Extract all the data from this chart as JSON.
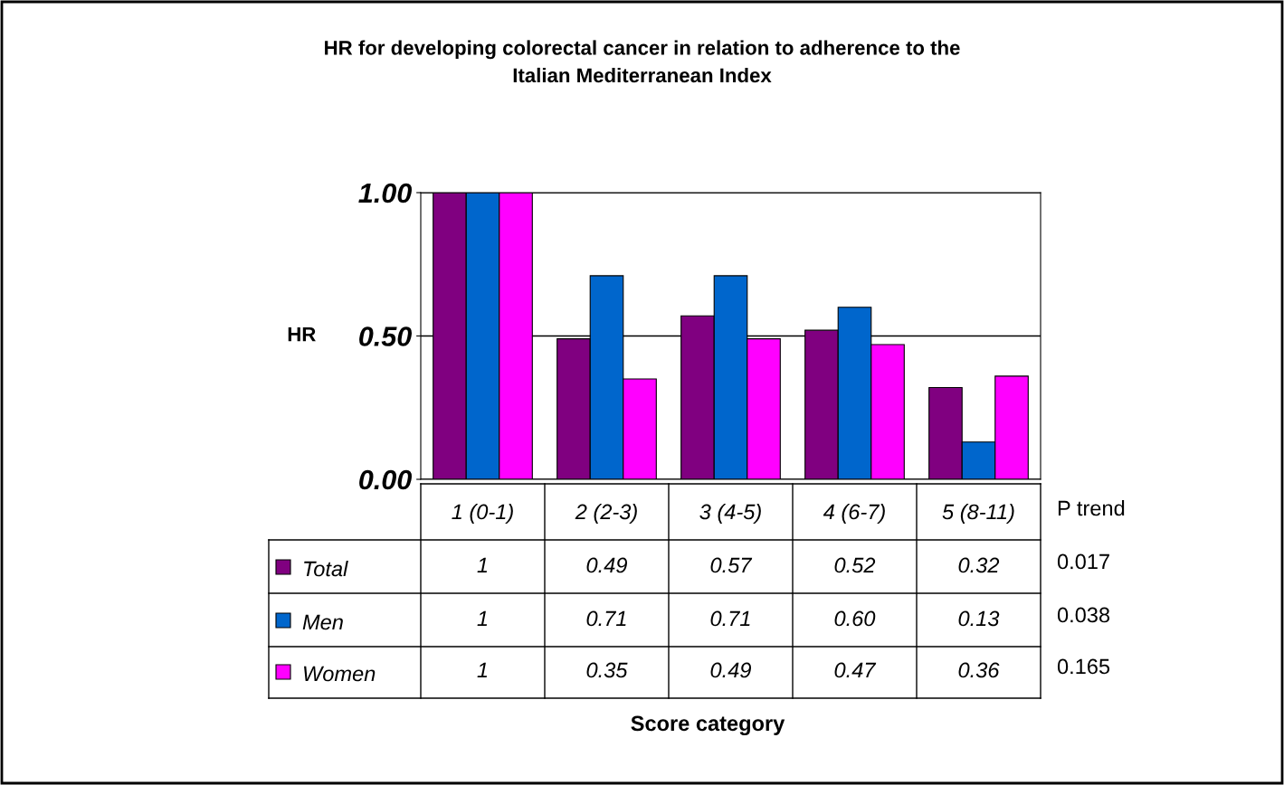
{
  "chart_data": {
    "type": "bar",
    "title": "HR for developing colorectal cancer in relation to adherence to the\nItalian Mediterranean Index",
    "ylabel": "HR",
    "categories": [
      "1 (0-1)",
      "2 (2-3)",
      "3 (4-5)",
      "4 (6-7)",
      "5 (8-11)"
    ],
    "series": [
      {
        "name": "Total",
        "color": "#800080",
        "values": [
          1,
          0.49,
          0.57,
          0.52,
          0.32
        ],
        "value_labels": [
          "1",
          "0.49",
          "0.57",
          "0.52",
          "0.32"
        ]
      },
      {
        "name": "Men",
        "color": "#0066cc",
        "values": [
          1,
          0.71,
          0.71,
          0.6,
          0.13
        ],
        "value_labels": [
          "1",
          "0.71",
          "0.71",
          "0.60",
          "0.13"
        ]
      },
      {
        "name": "Women",
        "color": "#ff00ff",
        "values": [
          1,
          0.35,
          0.49,
          0.47,
          0.36
        ],
        "value_labels": [
          "1",
          "0.35",
          "0.49",
          "0.47",
          "0.36"
        ]
      }
    ],
    "ylim": [
      0,
      1
    ],
    "yticks": [
      {
        "value": 0,
        "label": "0.00"
      },
      {
        "value": 0.5,
        "label": "0.50"
      },
      {
        "value": 1,
        "label": "1.00"
      }
    ],
    "grid": "y",
    "legend": "bottom",
    "annotations": [
      "P trend",
      "0.017",
      "0.038",
      "0.165",
      "Score category"
    ]
  }
}
